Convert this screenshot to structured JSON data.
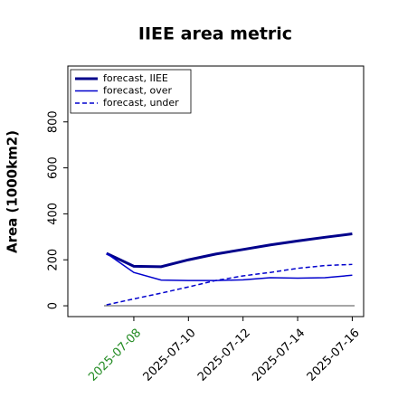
{
  "chart_data": {
    "type": "line",
    "title": "IIEE area metric",
    "ylabel": "Area (1000km2)",
    "x": [
      "2025-07-07",
      "2025-07-08",
      "2025-07-09",
      "2025-07-10",
      "2025-07-11",
      "2025-07-12",
      "2025-07-13",
      "2025-07-14",
      "2025-07-15",
      "2025-07-16"
    ],
    "series": [
      {
        "name": "forecast, IIEE",
        "color": "#00008b",
        "width": 3,
        "dash": "solid",
        "values": [
          228,
          172,
          170,
          200,
          225,
          245,
          265,
          282,
          298,
          313
        ]
      },
      {
        "name": "forecast, over",
        "color": "#0000cd",
        "width": 1.5,
        "dash": "solid",
        "values": [
          228,
          145,
          112,
          110,
          110,
          113,
          122,
          120,
          122,
          133
        ]
      },
      {
        "name": "forecast, under",
        "color": "#0000cd",
        "width": 1.5,
        "dash": "dashed",
        "values": [
          4,
          30,
          55,
          82,
          110,
          130,
          145,
          163,
          175,
          180
        ]
      }
    ],
    "hline": {
      "value": 0,
      "color": "#888888"
    },
    "xlim": [
      "2025-07-05T14:00:00Z",
      "2025-07-16T10:00:00Z"
    ],
    "xticks": [
      "2025-07-08",
      "2025-07-10",
      "2025-07-12",
      "2025-07-14",
      "2025-07-16"
    ],
    "xtick_colors": [
      "#228b22",
      "#000000",
      "#000000",
      "#000000",
      "#000000"
    ],
    "ylim": [
      -47,
      1043
    ],
    "yticks": [
      0,
      200,
      400,
      600,
      800
    ],
    "legend": "upper left",
    "grid": false
  }
}
